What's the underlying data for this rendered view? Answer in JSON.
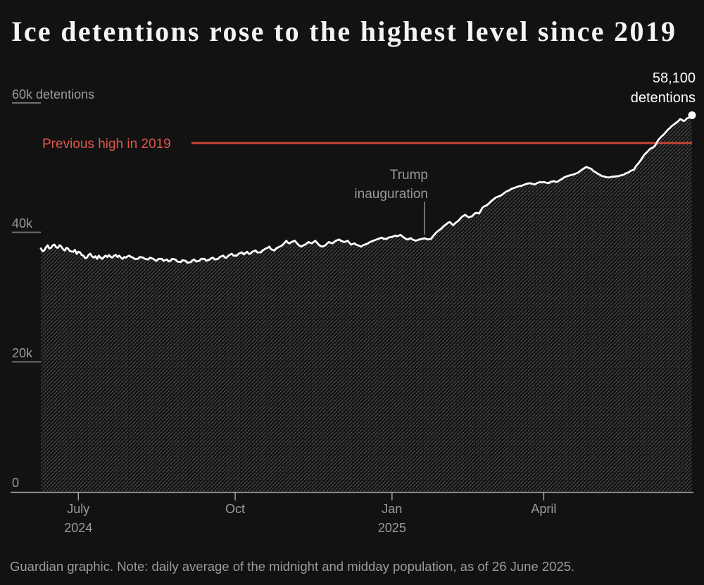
{
  "title": "Ice detentions rose to the highest level since 2019",
  "footer": "Guardian graphic. Note: daily average of the midnight and midday population, as of 26 June 2025.",
  "colors": {
    "background": "#121212",
    "line": "#ffffff",
    "reference_red_line": "#c74431",
    "reference_red_text": "#e0564a",
    "axis_gray": "#9b9b9b",
    "hatch": "#555555"
  },
  "chart_data": {
    "type": "area",
    "title": "Ice detentions rose to the highest level since 2019",
    "ylabel_unit": "detentions",
    "ylim": [
      0,
      60
    ],
    "x_domain_days": 382,
    "x_start_date": "2024-06-09",
    "x_end_date": "2025-06-26",
    "y_ticks": [
      {
        "label": "60k detentions",
        "value": 60
      },
      {
        "label": "40k",
        "value": 40
      },
      {
        "label": "20k",
        "value": 20
      },
      {
        "label": "0",
        "value": 0
      }
    ],
    "x_ticks": [
      {
        "label": "July",
        "sublabel": "2024",
        "day": 22
      },
      {
        "label": "Oct",
        "sublabel": "",
        "day": 114
      },
      {
        "label": "Jan",
        "sublabel": "2025",
        "day": 206
      },
      {
        "label": "April",
        "sublabel": "",
        "day": 295
      }
    ],
    "reference_line": {
      "label": "Previous high in 2019",
      "value_k": 53.8
    },
    "annotation": {
      "line1": "Trump",
      "line2": "inauguration",
      "day": 225,
      "value_k": 39.1
    },
    "end_point": {
      "line1": "58,100",
      "line2": "detentions",
      "day": 382,
      "value_k": 58.1
    },
    "unit": "thousands of detentions",
    "points": [
      [
        0,
        37.5
      ],
      [
        1,
        37.1
      ],
      [
        2,
        37.2
      ],
      [
        3,
        37.7
      ],
      [
        4,
        38.0
      ],
      [
        5,
        37.5
      ],
      [
        6,
        37.6
      ],
      [
        7,
        38.0
      ],
      [
        8,
        38.1
      ],
      [
        9,
        37.7
      ],
      [
        10,
        37.6
      ],
      [
        11,
        38.0
      ],
      [
        12,
        37.8
      ],
      [
        13,
        37.4
      ],
      [
        14,
        37.2
      ],
      [
        15,
        37.6
      ],
      [
        16,
        37.5
      ],
      [
        17,
        37.1
      ],
      [
        19,
        37.0
      ],
      [
        20,
        37.3
      ],
      [
        21,
        36.7
      ],
      [
        22,
        37.0
      ],
      [
        23,
        36.9
      ],
      [
        24,
        36.5
      ],
      [
        25,
        36.4
      ],
      [
        26,
        36.0
      ],
      [
        27,
        36.1
      ],
      [
        28,
        36.5
      ],
      [
        29,
        36.7
      ],
      [
        30,
        36.3
      ],
      [
        31,
        36.1
      ],
      [
        32,
        36.3
      ],
      [
        33,
        35.9
      ],
      [
        34,
        36.4
      ],
      [
        35,
        36.1
      ],
      [
        36,
        35.9
      ],
      [
        37,
        36.2
      ],
      [
        38,
        36.4
      ],
      [
        39,
        36.2
      ],
      [
        40,
        36.5
      ],
      [
        41,
        36.2
      ],
      [
        42,
        36.1
      ],
      [
        43,
        36.4
      ],
      [
        44,
        36.5
      ],
      [
        45,
        36.2
      ],
      [
        46,
        36.4
      ],
      [
        47,
        36.1
      ],
      [
        48,
        35.9
      ],
      [
        49,
        36.2
      ],
      [
        50,
        36.1
      ],
      [
        51,
        36.3
      ],
      [
        52,
        36.4
      ],
      [
        53,
        36.2
      ],
      [
        54,
        36.1
      ],
      [
        55,
        35.9
      ],
      [
        57,
        35.9
      ],
      [
        58,
        36.2
      ],
      [
        60,
        36.1
      ],
      [
        61,
        35.9
      ],
      [
        63,
        35.8
      ],
      [
        64,
        36.1
      ],
      [
        66,
        35.9
      ],
      [
        67,
        35.7
      ],
      [
        68,
        35.6
      ],
      [
        69,
        35.9
      ],
      [
        71,
        35.9
      ],
      [
        72,
        35.6
      ],
      [
        74,
        35.8
      ],
      [
        75,
        35.5
      ],
      [
        76,
        35.6
      ],
      [
        77,
        35.9
      ],
      [
        79,
        35.8
      ],
      [
        80,
        35.5
      ],
      [
        82,
        35.4
      ],
      [
        83,
        35.7
      ],
      [
        85,
        35.6
      ],
      [
        86,
        35.3
      ],
      [
        88,
        35.4
      ],
      [
        89,
        35.7
      ],
      [
        90,
        35.8
      ],
      [
        91,
        35.5
      ],
      [
        93,
        35.6
      ],
      [
        94,
        35.9
      ],
      [
        96,
        35.9
      ],
      [
        97,
        35.6
      ],
      [
        99,
        35.8
      ],
      [
        100,
        36.0
      ],
      [
        101,
        36.1
      ],
      [
        102,
        35.8
      ],
      [
        104,
        35.9
      ],
      [
        105,
        36.2
      ],
      [
        107,
        36.4
      ],
      [
        108,
        36.1
      ],
      [
        109,
        36.1
      ],
      [
        110,
        36.4
      ],
      [
        112,
        36.7
      ],
      [
        113,
        36.4
      ],
      [
        115,
        36.4
      ],
      [
        116,
        36.7
      ],
      [
        118,
        36.9
      ],
      [
        119,
        36.6
      ],
      [
        121,
        37.0
      ],
      [
        122,
        36.7
      ],
      [
        123,
        36.7
      ],
      [
        124,
        37.0
      ],
      [
        126,
        37.2
      ],
      [
        127,
        36.9
      ],
      [
        129,
        36.9
      ],
      [
        130,
        37.2
      ],
      [
        132,
        37.5
      ],
      [
        133,
        37.6
      ],
      [
        134,
        37.8
      ],
      [
        135,
        37.4
      ],
      [
        137,
        37.2
      ],
      [
        138,
        37.5
      ],
      [
        140,
        37.8
      ],
      [
        141,
        37.9
      ],
      [
        142,
        38.1
      ],
      [
        143,
        38.4
      ],
      [
        144,
        38.7
      ],
      [
        145,
        38.4
      ],
      [
        146,
        38.3
      ],
      [
        147,
        38.5
      ],
      [
        149,
        38.7
      ],
      [
        150,
        38.4
      ],
      [
        151,
        38.1
      ],
      [
        152,
        37.9
      ],
      [
        153,
        37.8
      ],
      [
        154,
        38.0
      ],
      [
        155,
        38.1
      ],
      [
        156,
        38.3
      ],
      [
        157,
        38.5
      ],
      [
        158,
        38.4
      ],
      [
        159,
        38.3
      ],
      [
        160,
        38.5
      ],
      [
        161,
        38.7
      ],
      [
        162,
        38.4
      ],
      [
        163,
        38.1
      ],
      [
        164,
        37.9
      ],
      [
        165,
        37.8
      ],
      [
        166,
        37.9
      ],
      [
        167,
        38.0
      ],
      [
        168,
        38.3
      ],
      [
        169,
        38.5
      ],
      [
        170,
        38.4
      ],
      [
        171,
        38.3
      ],
      [
        172,
        38.5
      ],
      [
        173,
        38.7
      ],
      [
        174,
        38.8
      ],
      [
        175,
        38.9
      ],
      [
        176,
        38.7
      ],
      [
        178,
        38.5
      ],
      [
        179,
        38.6
      ],
      [
        180,
        38.7
      ],
      [
        181,
        38.4
      ],
      [
        182,
        38.1
      ],
      [
        183,
        38.2
      ],
      [
        184,
        38.3
      ],
      [
        185,
        38.1
      ],
      [
        186,
        38.0
      ],
      [
        187,
        37.9
      ],
      [
        188,
        37.8
      ],
      [
        189,
        38.0
      ],
      [
        190,
        38.1
      ],
      [
        191,
        38.2
      ],
      [
        192,
        38.3
      ],
      [
        193,
        38.5
      ],
      [
        195,
        38.7
      ],
      [
        196,
        38.8
      ],
      [
        198,
        39.0
      ],
      [
        199,
        39.1
      ],
      [
        200,
        39.2
      ],
      [
        201,
        39.0
      ],
      [
        203,
        39.0
      ],
      [
        204,
        39.2
      ],
      [
        206,
        39.3
      ],
      [
        207,
        39.4
      ],
      [
        208,
        39.5
      ],
      [
        209,
        39.4
      ],
      [
        211,
        39.6
      ],
      [
        212,
        39.4
      ],
      [
        213,
        39.2
      ],
      [
        214,
        39.0
      ],
      [
        215,
        38.9
      ],
      [
        216,
        39.0
      ],
      [
        217,
        39.1
      ],
      [
        218,
        38.9
      ],
      [
        220,
        38.7
      ],
      [
        221,
        38.8
      ],
      [
        222,
        38.9
      ],
      [
        224,
        39.0
      ],
      [
        225,
        39.1
      ],
      [
        226,
        39.0
      ],
      [
        227,
        38.9
      ],
      [
        229,
        39.0
      ],
      [
        230,
        39.4
      ],
      [
        231,
        39.7
      ],
      [
        232,
        40.0
      ],
      [
        233,
        40.2
      ],
      [
        234,
        40.4
      ],
      [
        235,
        40.6
      ],
      [
        236,
        40.9
      ],
      [
        237,
        41.1
      ],
      [
        238,
        41.3
      ],
      [
        239,
        41.5
      ],
      [
        240,
        41.6
      ],
      [
        241,
        41.3
      ],
      [
        242,
        41.1
      ],
      [
        243,
        41.4
      ],
      [
        244,
        41.6
      ],
      [
        245,
        41.8
      ],
      [
        246,
        42.1
      ],
      [
        247,
        42.4
      ],
      [
        249,
        42.7
      ],
      [
        250,
        42.5
      ],
      [
        251,
        42.3
      ],
      [
        252,
        42.4
      ],
      [
        253,
        42.5
      ],
      [
        254,
        42.8
      ],
      [
        255,
        43.0
      ],
      [
        256,
        43.0
      ],
      [
        257,
        42.9
      ],
      [
        258,
        43.3
      ],
      [
        259,
        43.8
      ],
      [
        260,
        44.0
      ],
      [
        261,
        44.1
      ],
      [
        262,
        44.3
      ],
      [
        263,
        44.5
      ],
      [
        264,
        44.8
      ],
      [
        265,
        45.0
      ],
      [
        266,
        45.2
      ],
      [
        267,
        45.4
      ],
      [
        268,
        45.5
      ],
      [
        269,
        45.6
      ],
      [
        270,
        45.7
      ],
      [
        271,
        45.9
      ],
      [
        272,
        46.1
      ],
      [
        273,
        46.3
      ],
      [
        274,
        46.4
      ],
      [
        276,
        46.7
      ],
      [
        277,
        46.8
      ],
      [
        279,
        47.0
      ],
      [
        280,
        47.1
      ],
      [
        282,
        47.2
      ],
      [
        283,
        47.3
      ],
      [
        284,
        47.4
      ],
      [
        285,
        47.5
      ],
      [
        287,
        47.6
      ],
      [
        288,
        47.5
      ],
      [
        290,
        47.4
      ],
      [
        291,
        47.6
      ],
      [
        293,
        47.8
      ],
      [
        294,
        47.7
      ],
      [
        295,
        47.8
      ],
      [
        296,
        47.7
      ],
      [
        298,
        47.6
      ],
      [
        299,
        47.8
      ],
      [
        301,
        47.9
      ],
      [
        302,
        47.8
      ],
      [
        303,
        47.8
      ],
      [
        304,
        48.0
      ],
      [
        306,
        48.3
      ],
      [
        307,
        48.5
      ],
      [
        309,
        48.7
      ],
      [
        310,
        48.8
      ],
      [
        312,
        48.9
      ],
      [
        313,
        49.0
      ],
      [
        315,
        49.2
      ],
      [
        316,
        49.4
      ],
      [
        317,
        49.6
      ],
      [
        318,
        49.8
      ],
      [
        320,
        50.1
      ],
      [
        321,
        50.0
      ],
      [
        323,
        49.8
      ],
      [
        324,
        49.5
      ],
      [
        326,
        49.2
      ],
      [
        327,
        49.0
      ],
      [
        328,
        48.9
      ],
      [
        329,
        48.7
      ],
      [
        331,
        48.6
      ],
      [
        332,
        48.5
      ],
      [
        334,
        48.5
      ],
      [
        335,
        48.6
      ],
      [
        336,
        48.6
      ],
      [
        339,
        48.7
      ],
      [
        340,
        48.8
      ],
      [
        342,
        48.9
      ],
      [
        343,
        49.1
      ],
      [
        345,
        49.3
      ],
      [
        346,
        49.5
      ],
      [
        348,
        49.7
      ],
      [
        349,
        50.2
      ],
      [
        351,
        50.8
      ],
      [
        352,
        51.2
      ],
      [
        353,
        51.6
      ],
      [
        354,
        52.0
      ],
      [
        356,
        52.5
      ],
      [
        357,
        52.8
      ],
      [
        358,
        53.0
      ],
      [
        359,
        53.1
      ],
      [
        360,
        53.3
      ],
      [
        361,
        53.7
      ],
      [
        362,
        54.2
      ],
      [
        363,
        54.5
      ],
      [
        364,
        54.8
      ],
      [
        365,
        55.0
      ],
      [
        366,
        55.3
      ],
      [
        367,
        55.6
      ],
      [
        368,
        55.9
      ],
      [
        369,
        56.1
      ],
      [
        370,
        56.4
      ],
      [
        371,
        56.6
      ],
      [
        372,
        56.8
      ],
      [
        373,
        57.0
      ],
      [
        374,
        57.2
      ],
      [
        375,
        57.5
      ],
      [
        376,
        57.4
      ],
      [
        377,
        57.2
      ],
      [
        378,
        57.3
      ],
      [
        379,
        57.6
      ],
      [
        380,
        57.7
      ],
      [
        382,
        58.1
      ]
    ]
  }
}
